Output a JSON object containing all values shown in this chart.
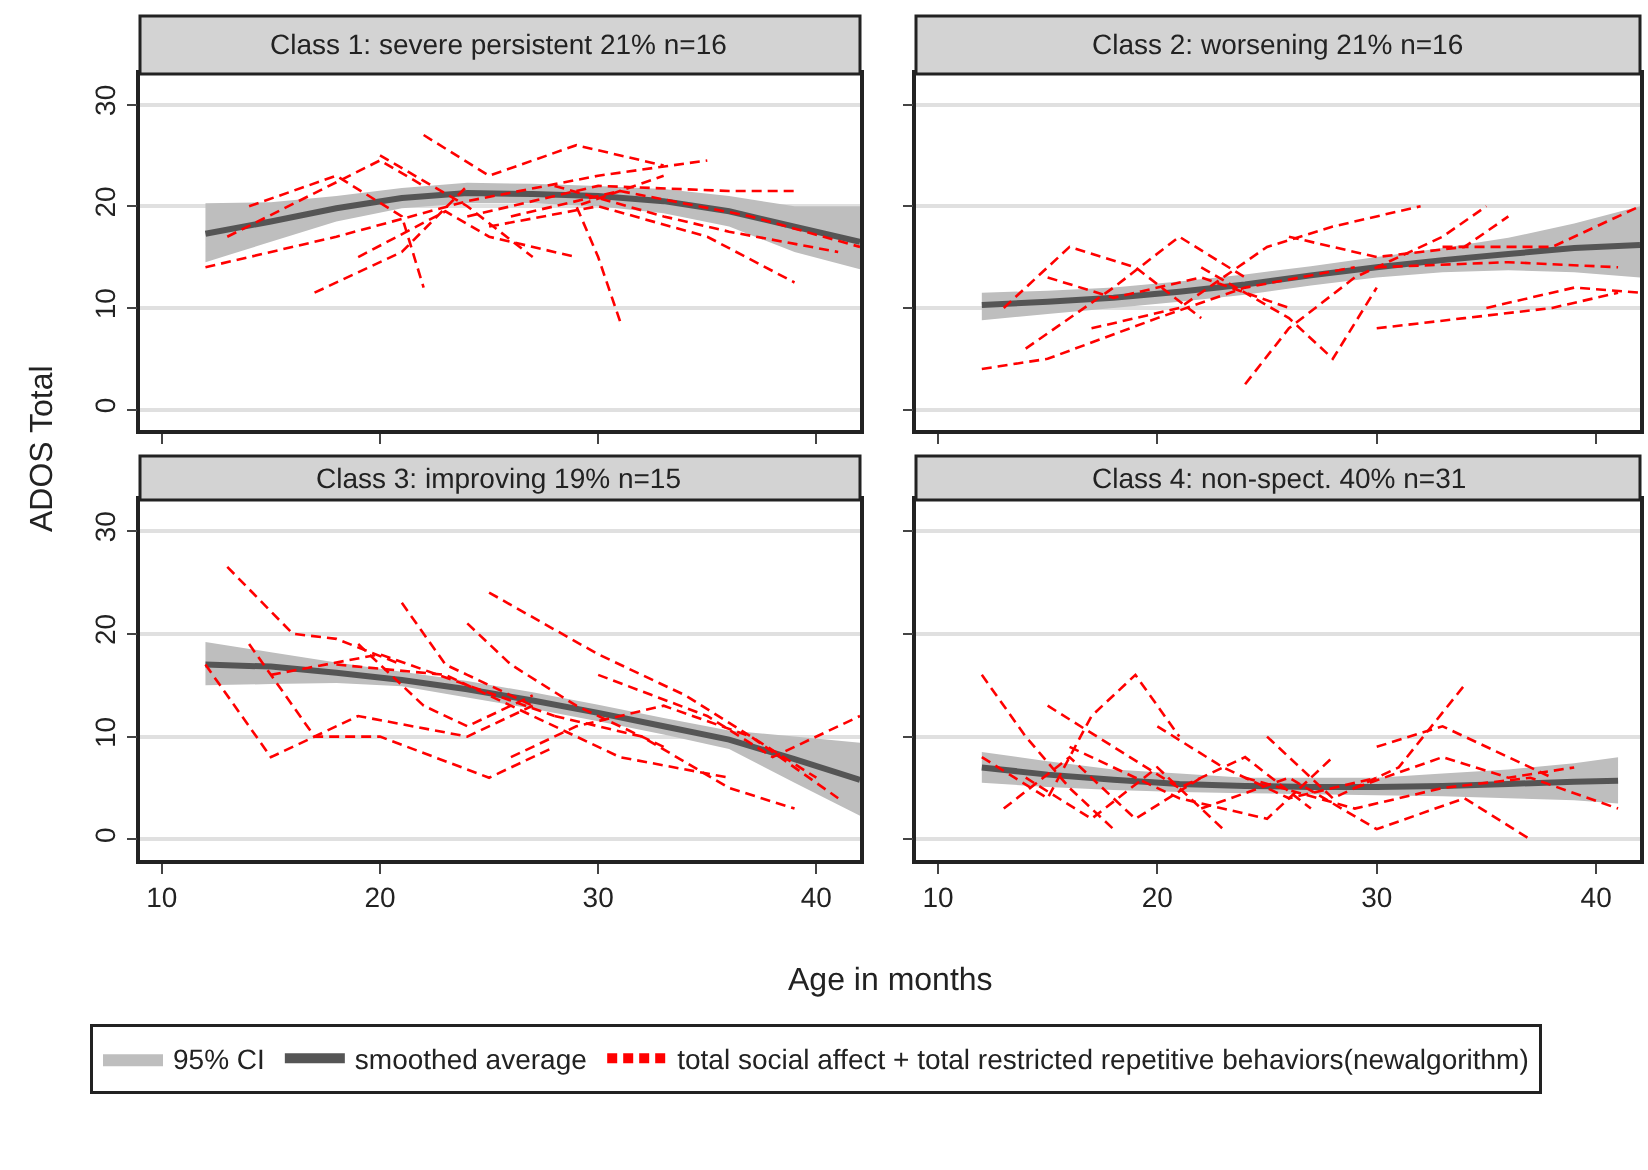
{
  "chart_data": [
    {
      "type": "line",
      "title": "Class 1: severe persistent 21% n=16",
      "ylabel": "ADOS Total",
      "annotations": [
        "95% CI"
      ],
      "xlim": [
        9,
        42
      ],
      "xticks": [
        10,
        20,
        30,
        40
      ],
      "ylim": [
        -2,
        33
      ],
      "yticks": [
        0,
        10,
        20,
        30
      ],
      "grid": "y",
      "tick_labels": "y",
      "legend": "bottom",
      "series": [
        {
          "name": "smoothed average",
          "type": "line",
          "color": "#555555",
          "line_style": "solid",
          "x": [
            12,
            15,
            18,
            21,
            24,
            27,
            30,
            33,
            36,
            39,
            42
          ],
          "values": [
            17.3,
            18.5,
            19.8,
            20.8,
            21.3,
            21.2,
            21,
            20.5,
            19.5,
            18,
            16.5
          ],
          "lower": [
            14.5,
            16.5,
            18.5,
            19.8,
            20.3,
            20.3,
            20,
            19.3,
            18,
            15.5,
            13.8
          ],
          "upper": [
            20.3,
            20.4,
            21,
            21.8,
            22.3,
            22.2,
            22,
            21.7,
            21,
            20,
            20
          ]
        },
        {
          "name": "total social affect + total restricted repetitive behaviors(newalgorithm)",
          "type": "line",
          "color": "#ff0000",
          "line_style": "dashed",
          "x": [
            12,
            18,
            24,
            30,
            35,
            null,
            13,
            20,
            22,
            null,
            17,
            21,
            24,
            null,
            20,
            24,
            27,
            null,
            22,
            25,
            29,
            33,
            null,
            24,
            30,
            36,
            39,
            null,
            25,
            30,
            35,
            39,
            null,
            31,
            30,
            29,
            33,
            null,
            28,
            33,
            36,
            41,
            null,
            14,
            18,
            21,
            22,
            null,
            26,
            31,
            37,
            42,
            null,
            19,
            23,
            25,
            29
          ],
          "values": [
            14,
            17,
            20.5,
            23,
            24.5,
            null,
            17,
            24.5,
            22,
            null,
            11.5,
            15.5,
            22,
            null,
            25,
            20,
            15,
            null,
            27,
            23,
            26,
            24,
            null,
            19,
            22,
            21.5,
            21.5,
            null,
            18,
            20,
            17,
            12.5,
            null,
            8.7,
            15,
            20,
            23,
            null,
            22,
            19,
            17.5,
            15.5,
            null,
            20,
            23,
            19,
            12,
            null,
            19,
            21.5,
            19,
            16,
            null,
            15,
            19.5,
            17,
            15
          ]
        }
      ]
    },
    {
      "type": "line",
      "title": "Class 2: worsening 21% n=16",
      "xlim": [
        9,
        42
      ],
      "xticks": [
        10,
        20,
        30,
        40
      ],
      "ylim": [
        -2,
        33
      ],
      "yticks": [
        0,
        10,
        20,
        30
      ],
      "grid": "y",
      "tick_labels": false,
      "series": [
        {
          "type": "line",
          "color": "#555555",
          "line_style": "solid",
          "x": [
            12,
            15,
            18,
            21,
            24,
            27,
            30,
            33,
            36,
            39,
            42
          ],
          "values": [
            10.3,
            10.6,
            11,
            11.6,
            12.3,
            13.2,
            14,
            14.7,
            15.3,
            15.9,
            16.2
          ],
          "lower": [
            8.8,
            9.4,
            10,
            10.6,
            11.3,
            12.2,
            13,
            13.5,
            13.7,
            13.5,
            13
          ],
          "upper": [
            11.5,
            11.7,
            12,
            12.6,
            13.3,
            14.1,
            15,
            15.9,
            16.9,
            18.3,
            20
          ]
        },
        {
          "type": "line",
          "color": "#ff0000",
          "line_style": "dashed",
          "x": [
            12,
            15,
            20,
            24,
            29,
            null,
            13,
            16,
            19,
            22,
            null,
            14,
            18,
            21,
            24,
            null,
            17,
            21,
            25,
            28,
            32,
            null,
            22,
            26,
            28,
            30,
            null,
            24,
            26,
            29,
            33,
            35,
            null,
            26,
            30,
            34,
            36,
            null,
            30,
            34,
            38,
            41,
            null,
            30,
            36,
            41,
            null,
            33,
            38,
            42,
            null,
            35,
            39,
            42,
            null,
            15,
            18,
            22,
            26
          ],
          "values": [
            4,
            5,
            9,
            12,
            14,
            null,
            10,
            16,
            14,
            9,
            null,
            6,
            12,
            17,
            13,
            null,
            8,
            10,
            16,
            18,
            20,
            null,
            14,
            9,
            5,
            12,
            null,
            2.5,
            8,
            13,
            17,
            20,
            null,
            17,
            15,
            16,
            19,
            null,
            8,
            9,
            10,
            11.5,
            null,
            14,
            14.5,
            14,
            null,
            16,
            16,
            20,
            null,
            10,
            12,
            11.5,
            null,
            13,
            11,
            13,
            10
          ]
        }
      ]
    },
    {
      "type": "line",
      "title": "Class 3: improving 19% n=15",
      "xlabel": "Age in months",
      "xlim": [
        9,
        42
      ],
      "xticks": [
        10,
        20,
        30,
        40
      ],
      "ylim": [
        -2,
        33
      ],
      "yticks": [
        0,
        10,
        20,
        30
      ],
      "grid": "y",
      "series": [
        {
          "type": "line",
          "color": "#555555",
          "line_style": "solid",
          "x": [
            12,
            15,
            18,
            21,
            24,
            27,
            30,
            33,
            36,
            39,
            42
          ],
          "values": [
            17,
            16.8,
            16.2,
            15.5,
            14.6,
            13.5,
            12.3,
            11,
            9.7,
            7.8,
            5.8
          ],
          "lower": [
            15,
            15.1,
            15.2,
            14.9,
            13.8,
            12.7,
            11.5,
            10.2,
            8.8,
            5.5,
            2.3
          ],
          "upper": [
            19.2,
            18.2,
            17.2,
            16.3,
            15.4,
            14.3,
            13.1,
            11.8,
            10.6,
            10,
            9.4
          ]
        },
        {
          "type": "line",
          "color": "#ff0000",
          "line_style": "dashed",
          "x": [
            13,
            16,
            18,
            21,
            null,
            12,
            15,
            19,
            24,
            27,
            null,
            14,
            17,
            20,
            25,
            28,
            null,
            21,
            23,
            24,
            27,
            null,
            24,
            26,
            29,
            33,
            null,
            25,
            30,
            34,
            40,
            null,
            18,
            23,
            27,
            31,
            36,
            null,
            28,
            32,
            36,
            39,
            null,
            30,
            35,
            38,
            42,
            null,
            26,
            29,
            33,
            37,
            41,
            null,
            19,
            22,
            24,
            27,
            null,
            15,
            20,
            24,
            28
          ],
          "values": [
            26.5,
            20,
            19.5,
            17,
            null,
            17,
            8,
            12,
            10,
            13,
            null,
            19,
            10,
            10,
            6,
            9,
            null,
            23,
            17,
            16,
            13,
            null,
            21,
            17,
            13,
            9,
            null,
            24,
            18,
            14,
            6,
            null,
            17,
            16,
            12,
            8,
            6,
            null,
            12,
            10,
            5,
            3,
            null,
            16,
            12,
            8,
            12,
            null,
            8,
            11,
            13,
            10,
            4,
            null,
            19,
            13,
            11,
            14,
            null,
            16,
            18,
            15,
            12
          ]
        }
      ]
    },
    {
      "type": "line",
      "title": "Class 4: non-spect. 40% n=31",
      "xlim": [
        9,
        42
      ],
      "xticks": [
        10,
        20,
        30,
        40
      ],
      "ylim": [
        -2,
        33
      ],
      "yticks": [
        0,
        10,
        20,
        30
      ],
      "grid": "y",
      "tick_labels": "x",
      "series": [
        {
          "type": "line",
          "color": "#555555",
          "line_style": "solid",
          "x": [
            12,
            15,
            18,
            21,
            24,
            27,
            30,
            33,
            36,
            39,
            41
          ],
          "values": [
            7,
            6.3,
            5.8,
            5.4,
            5.2,
            5.1,
            5.1,
            5.2,
            5.4,
            5.6,
            5.7
          ],
          "lower": [
            5.5,
            5.1,
            4.8,
            4.6,
            4.5,
            4.4,
            4.3,
            4.2,
            4,
            3.8,
            3.5
          ],
          "upper": [
            8.5,
            7.6,
            6.8,
            6.4,
            6,
            6,
            6,
            6.4,
            6.8,
            7.4,
            8
          ]
        },
        {
          "type": "line",
          "color": "#ff0000",
          "line_style": "dashed",
          "x": [
            12,
            14,
            16,
            18,
            null,
            12,
            15,
            17,
            19,
            21,
            null,
            13,
            16,
            19,
            22,
            null,
            15,
            18,
            21,
            24,
            27,
            null,
            20,
            23,
            26,
            30,
            null,
            25,
            28,
            31,
            34,
            null,
            22,
            26,
            30,
            34,
            37,
            null,
            29,
            33,
            36,
            39,
            null,
            24,
            29,
            33,
            37,
            41,
            null,
            14,
            17,
            20,
            23,
            null,
            30,
            33,
            36,
            38,
            null,
            16,
            21,
            25,
            28
          ],
          "values": [
            16,
            10,
            5,
            1,
            null,
            8,
            4,
            12,
            16,
            10,
            null,
            3,
            8,
            2,
            6,
            null,
            13,
            9,
            5,
            8,
            3,
            null,
            11,
            7,
            4,
            6,
            null,
            10,
            4,
            7,
            15,
            null,
            3,
            6,
            1,
            4,
            0,
            null,
            5,
            8,
            6,
            7,
            null,
            6,
            3,
            5,
            6,
            3,
            null,
            6,
            2,
            7,
            1,
            null,
            9,
            11,
            8,
            6,
            null,
            9,
            4,
            2,
            8
          ]
        }
      ]
    }
  ]
}
